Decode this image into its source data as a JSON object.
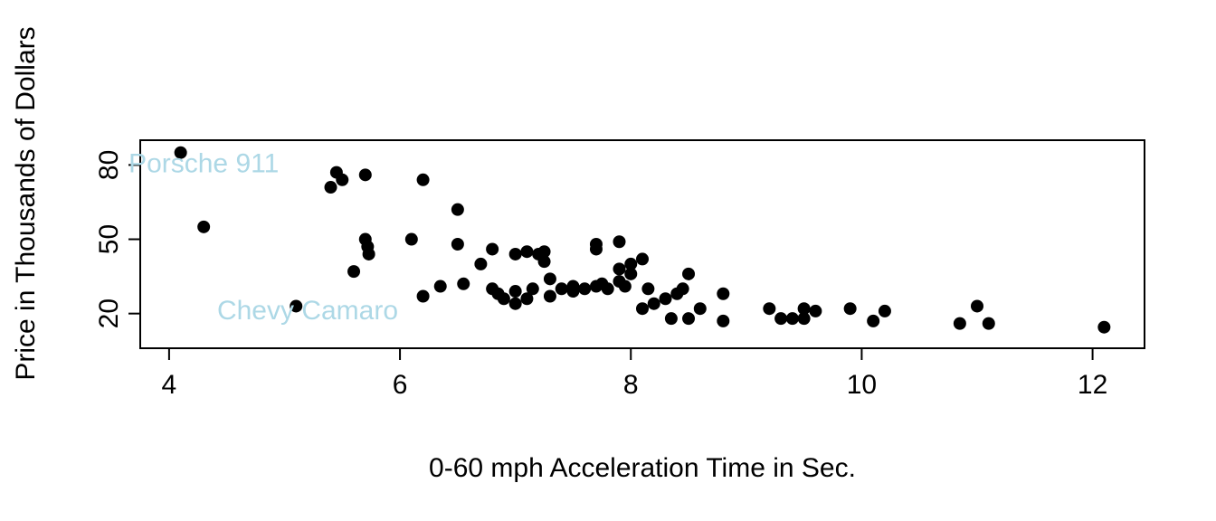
{
  "chart_data": {
    "type": "scatter",
    "title": "",
    "xlabel": "0-60 mph Acceleration Time in Sec.",
    "ylabel": "Price in Thousands of Dollars",
    "xlim": [
      3.75,
      12.45
    ],
    "ylim": [
      6,
      90
    ],
    "x_ticks": [
      4,
      6,
      8,
      10,
      12
    ],
    "y_ticks": [
      20,
      50,
      80
    ],
    "grid": false,
    "legend": "none",
    "point_color": "#000000",
    "point_radius": 7,
    "annotation_color": "#ADD8E6",
    "annotations": [
      {
        "label": "Porsche 911",
        "x": 4.3,
        "y": 80
      },
      {
        "label": "Chevy Camaro",
        "x": 5.2,
        "y": 20.5
      }
    ],
    "points": [
      [
        4.1,
        85
      ],
      [
        4.3,
        55
      ],
      [
        5.1,
        23
      ],
      [
        5.4,
        71
      ],
      [
        5.45,
        77
      ],
      [
        5.5,
        74
      ],
      [
        5.6,
        37
      ],
      [
        5.7,
        76
      ],
      [
        5.7,
        50
      ],
      [
        5.72,
        47
      ],
      [
        5.73,
        44
      ],
      [
        6.1,
        50
      ],
      [
        6.2,
        74
      ],
      [
        6.2,
        27
      ],
      [
        6.35,
        31
      ],
      [
        6.5,
        62
      ],
      [
        6.5,
        48
      ],
      [
        6.55,
        32
      ],
      [
        6.7,
        40
      ],
      [
        6.8,
        46
      ],
      [
        6.8,
        30
      ],
      [
        6.85,
        28
      ],
      [
        6.9,
        26
      ],
      [
        7.0,
        29
      ],
      [
        7.0,
        24
      ],
      [
        7.0,
        44
      ],
      [
        7.1,
        45
      ],
      [
        7.1,
        26
      ],
      [
        7.15,
        30
      ],
      [
        7.2,
        44
      ],
      [
        7.25,
        45
      ],
      [
        7.25,
        41
      ],
      [
        7.3,
        34
      ],
      [
        7.3,
        27
      ],
      [
        7.4,
        30
      ],
      [
        7.5,
        31
      ],
      [
        7.5,
        29
      ],
      [
        7.6,
        30
      ],
      [
        7.7,
        48
      ],
      [
        7.7,
        46
      ],
      [
        7.7,
        31
      ],
      [
        7.75,
        32
      ],
      [
        7.8,
        30
      ],
      [
        7.9,
        49
      ],
      [
        7.9,
        38
      ],
      [
        7.9,
        33
      ],
      [
        7.95,
        31
      ],
      [
        8.0,
        40
      ],
      [
        8.0,
        36
      ],
      [
        8.1,
        42
      ],
      [
        8.1,
        22
      ],
      [
        8.15,
        30
      ],
      [
        8.2,
        24
      ],
      [
        8.3,
        26
      ],
      [
        8.35,
        18
      ],
      [
        8.4,
        28
      ],
      [
        8.45,
        30
      ],
      [
        8.5,
        36
      ],
      [
        8.5,
        18
      ],
      [
        8.6,
        22
      ],
      [
        8.8,
        28
      ],
      [
        8.8,
        17
      ],
      [
        9.2,
        22
      ],
      [
        9.3,
        18
      ],
      [
        9.4,
        18
      ],
      [
        9.5,
        18
      ],
      [
        9.5,
        22
      ],
      [
        9.6,
        21
      ],
      [
        9.9,
        22
      ],
      [
        10.1,
        17
      ],
      [
        10.2,
        21
      ],
      [
        10.85,
        16
      ],
      [
        11.0,
        23
      ],
      [
        11.1,
        16
      ],
      [
        12.1,
        14.5
      ]
    ]
  }
}
